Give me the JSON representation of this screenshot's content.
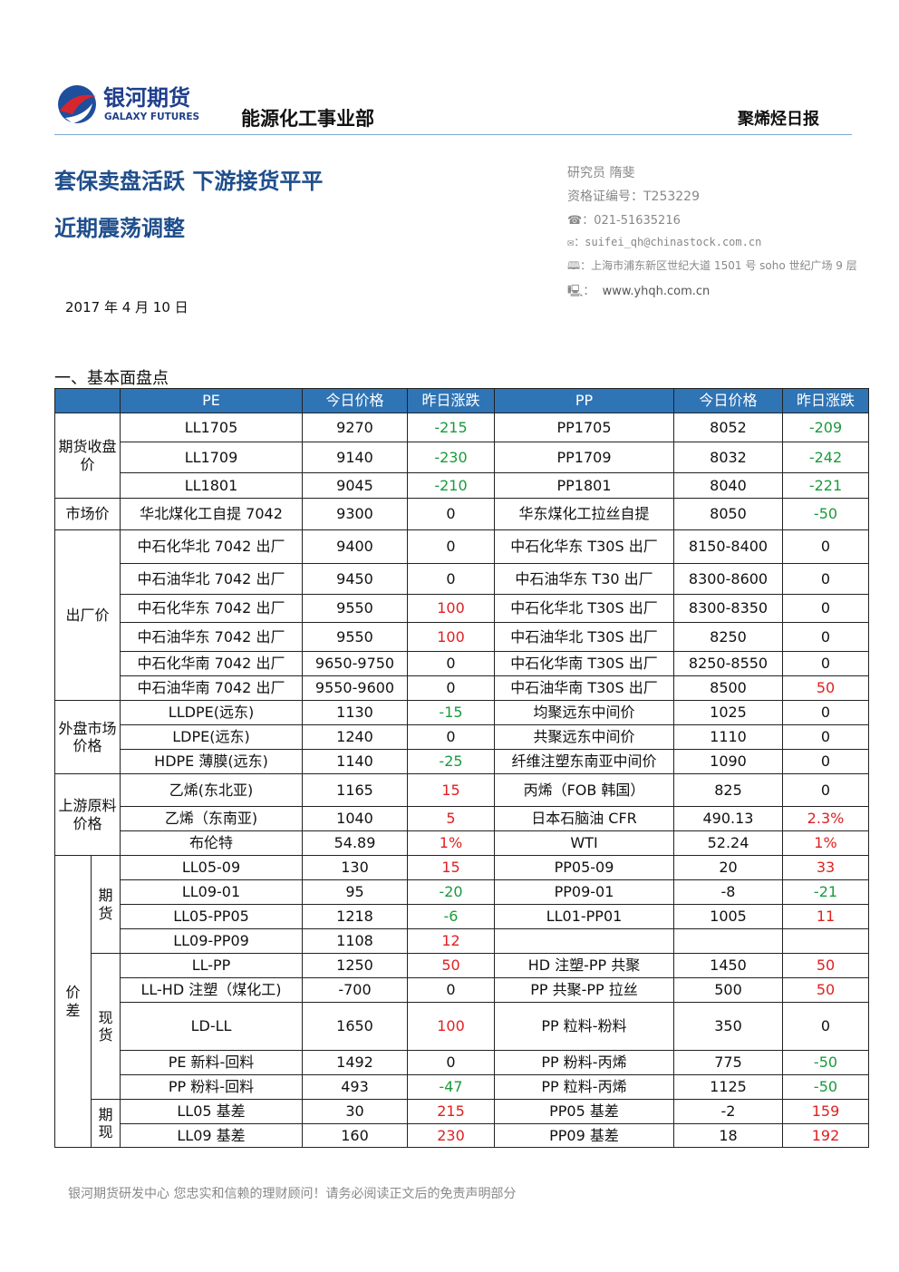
{
  "header": {
    "logo_cn": "银河期货",
    "logo_en": "GALAXY FUTURES",
    "department": "能源化工事业部",
    "report_type": "聚烯烃日报"
  },
  "title_lines": [
    "套保卖盘活跃  下游接货平平",
    "近期震荡调整"
  ],
  "contact": {
    "analyst": "研究员    隋斐",
    "cert": "资格证编号：T253229",
    "phone": "021-51635216",
    "email": "suifei_qh@chinastock.com.cn",
    "address": "上海市浦东新区世纪大道 1501 号 soho 世纪广场 9 层",
    "website": "www.yhqh.com.cn"
  },
  "date": "2017 年 4 月 10 日",
  "section": "一、基本面盘点",
  "table": {
    "columns": [
      "PE",
      "今日价格",
      "昨日涨跌",
      "PP",
      "今日价格",
      "昨日涨跌"
    ],
    "groups": [
      {
        "label": "期货收盘价",
        "rows": [
          [
            "LL1705",
            "9270",
            "-215",
            "PP1705",
            "8052",
            "-209"
          ],
          [
            "LL1709",
            "9140",
            "-230",
            "PP1709",
            "8032",
            "-242"
          ],
          [
            "LL1801",
            "9045",
            "-210",
            "PP1801",
            "8040",
            "-221"
          ]
        ]
      },
      {
        "label": "市场价",
        "rows": [
          [
            "华北煤化工自提 7042",
            "9300",
            "0",
            "华东煤化工拉丝自提",
            "8050",
            "-50"
          ]
        ]
      },
      {
        "label": "出厂价",
        "rows": [
          [
            "中石化华北 7042 出厂",
            "9400",
            "0",
            "中石化华东 T30S 出厂",
            "8150-8400",
            "0"
          ],
          [
            "中石油华北 7042 出厂",
            "9450",
            "0",
            "中石油华东 T30 出厂",
            "8300-8600",
            "0"
          ],
          [
            "中石化华东 7042 出厂",
            "9550",
            "100",
            "中石化华北 T30S 出厂",
            "8300-8350",
            "0"
          ],
          [
            "中石油华东 7042 出厂",
            "9550",
            "100",
            "中石油华北 T30S 出厂",
            "8250",
            "0"
          ],
          [
            "中石化华南 7042 出厂",
            "9650-9750",
            "0",
            "中石化华南 T30S 出厂",
            "8250-8550",
            "0"
          ],
          [
            "中石油华南 7042 出厂",
            "9550-9600",
            "0",
            "中石油华南 T30S 出厂",
            "8500",
            "50"
          ]
        ]
      },
      {
        "label": "外盘市场价格",
        "rows": [
          [
            "LLDPE(远东)",
            "1130",
            "-15",
            "均聚远东中间价",
            "1025",
            "0"
          ],
          [
            "LDPE(远东)",
            "1240",
            "0",
            "共聚远东中间价",
            "1110",
            "0"
          ],
          [
            "HDPE 薄膜(远东)",
            "1140",
            "-25",
            "纤维注塑东南亚中间价",
            "1090",
            "0"
          ]
        ]
      },
      {
        "label": "上游原料价格",
        "rows": [
          [
            "乙烯(东北亚)",
            "1165",
            "15",
            "丙烯（FOB 韩国）",
            "825",
            "0"
          ],
          [
            "乙烯（东南亚)",
            "1040",
            "5",
            "日本石脑油 CFR",
            "490.13",
            "2.3%"
          ],
          [
            "布伦特",
            "54.89",
            "1%",
            "WTI",
            "52.24",
            "1%"
          ]
        ]
      },
      {
        "label": "价差",
        "subgroups": [
          {
            "label": "期货",
            "rows": [
              [
                "LL05-09",
                "130",
                "15",
                "PP05-09",
                "20",
                "33"
              ],
              [
                "LL09-01",
                "95",
                "-20",
                "PP09-01",
                "-8",
                "-21"
              ],
              [
                "LL05-PP05",
                "1218",
                "-6",
                "LL01-PP01",
                "1005",
                "11"
              ],
              [
                "LL09-PP09",
                "1108",
                "12",
                null,
                null,
                null
              ]
            ]
          },
          {
            "label": "现货",
            "rows": [
              [
                "LL-PP",
                "1250",
                "50",
                "HD 注塑-PP 共聚",
                "1450",
                "50"
              ],
              [
                "LL-HD 注塑（煤化工)",
                "-700",
                "0",
                "PP 共聚-PP 拉丝",
                "500",
                "50"
              ],
              [
                "LD-LL",
                "1650",
                "100",
                "PP 粒料-粉料",
                "350",
                "0"
              ],
              [
                "PE 新料-回料",
                "1492",
                "0",
                "PP 粉料-丙烯",
                "775",
                "-50"
              ],
              [
                "PP 粉料-回料",
                "493",
                "-47",
                "PP 粒料-丙烯",
                "1125",
                "-50"
              ]
            ]
          },
          {
            "label": "期现",
            "rows": [
              [
                "LL05 基差",
                "30",
                "215",
                "PP05 基差",
                "-2",
                "159"
              ],
              [
                "LL09 基差",
                "160",
                "230",
                "PP09 基差",
                "18",
                "192"
              ]
            ]
          }
        ]
      }
    ]
  },
  "footer": "银河期货研发中心  您忠实和信赖的理财顾问！请务必阅读正文后的免责声明部分"
}
